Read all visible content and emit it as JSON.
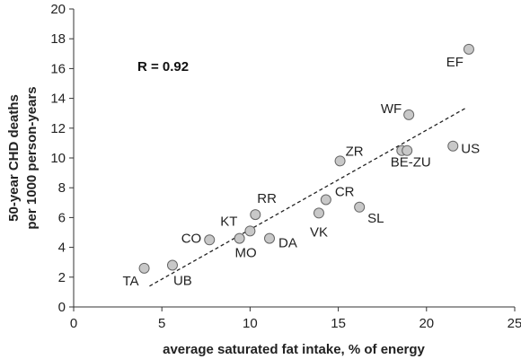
{
  "chart_data": {
    "type": "scatter",
    "title": "",
    "xlabel": "average saturated fat intake, % of energy",
    "ylabel_lines": [
      "50-year CHD deaths",
      "per 1000 person-years"
    ],
    "xlim": [
      0,
      25
    ],
    "ylim": [
      0,
      20
    ],
    "xticks": [
      0,
      5,
      10,
      15,
      20,
      25
    ],
    "yticks": [
      0,
      2,
      4,
      6,
      8,
      10,
      12,
      14,
      16,
      18,
      20
    ],
    "grid": false,
    "annotation": "R = 0.92",
    "point_color": "#c8c8c8",
    "point_stroke": "#666666",
    "points": [
      {
        "label": "TA",
        "x": 4.0,
        "y": 2.6
      },
      {
        "label": "UB",
        "x": 5.6,
        "y": 2.8
      },
      {
        "label": "CO",
        "x": 7.7,
        "y": 4.5
      },
      {
        "label": "MO",
        "x": 9.4,
        "y": 4.6
      },
      {
        "label": "KT",
        "x": 10.0,
        "y": 5.1
      },
      {
        "label": "RR",
        "x": 10.3,
        "y": 6.2
      },
      {
        "label": "DA",
        "x": 11.1,
        "y": 4.6
      },
      {
        "label": "VK",
        "x": 13.9,
        "y": 6.3
      },
      {
        "label": "CR",
        "x": 14.3,
        "y": 7.2
      },
      {
        "label": "ZR",
        "x": 15.1,
        "y": 9.8
      },
      {
        "label": "SL",
        "x": 16.2,
        "y": 6.7
      },
      {
        "label": "BE",
        "x": 18.6,
        "y": 10.5
      },
      {
        "label": "ZU",
        "x": 18.9,
        "y": 10.5
      },
      {
        "label": "WF",
        "x": 19.0,
        "y": 12.9
      },
      {
        "label": "US",
        "x": 21.5,
        "y": 10.8
      },
      {
        "label": "EF",
        "x": 22.4,
        "y": 17.3
      }
    ],
    "point_labels": [
      {
        "text": "TA",
        "for": [
          "TA"
        ]
      },
      {
        "text": "UB",
        "for": [
          "UB"
        ]
      },
      {
        "text": "CO",
        "for": [
          "CO"
        ]
      },
      {
        "text": "MO",
        "for": [
          "MO"
        ]
      },
      {
        "text": "KT",
        "for": [
          "KT"
        ]
      },
      {
        "text": "RR",
        "for": [
          "RR"
        ]
      },
      {
        "text": "DA",
        "for": [
          "DA"
        ]
      },
      {
        "text": "VK",
        "for": [
          "VK"
        ]
      },
      {
        "text": "CR",
        "for": [
          "CR"
        ]
      },
      {
        "text": "ZR",
        "for": [
          "ZR"
        ]
      },
      {
        "text": "SL",
        "for": [
          "SL"
        ]
      },
      {
        "text": "BE-ZU",
        "for": [
          "BE",
          "ZU"
        ]
      },
      {
        "text": "WF",
        "for": [
          "WF"
        ]
      },
      {
        "text": "US",
        "for": [
          "US"
        ]
      },
      {
        "text": "EF",
        "for": [
          "EF"
        ]
      }
    ],
    "trendline": {
      "style": "dashed",
      "x": [
        4.3,
        22.3
      ],
      "y": [
        1.4,
        13.4
      ]
    }
  }
}
